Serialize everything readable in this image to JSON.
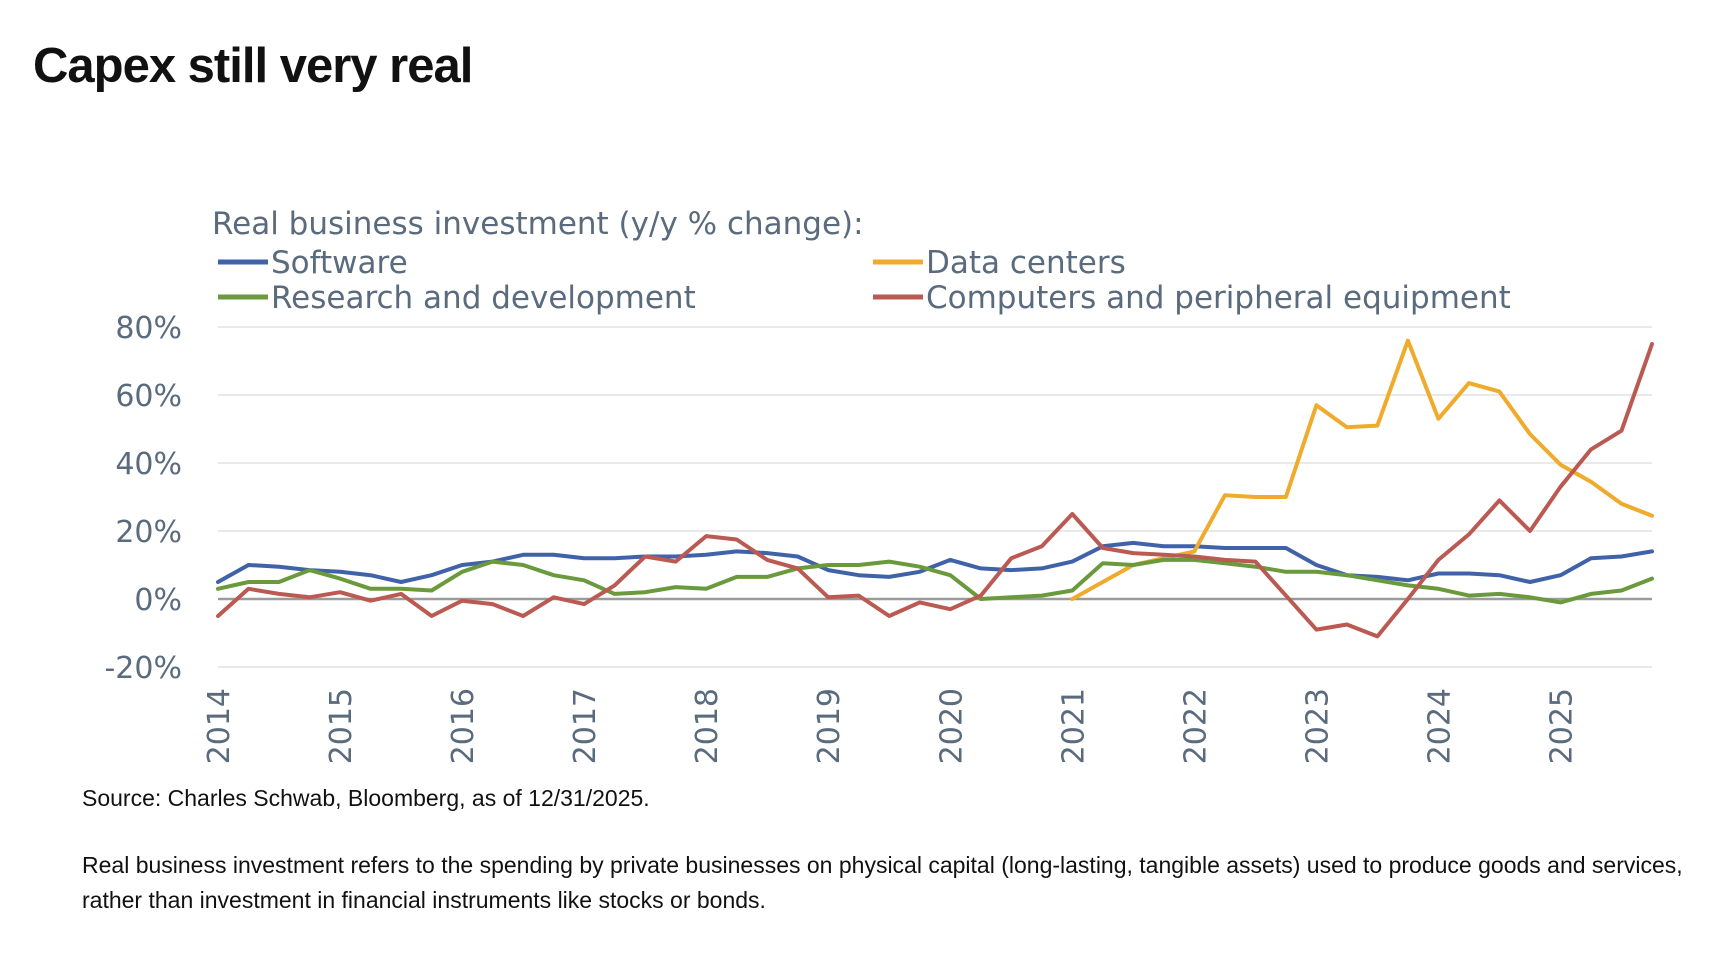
{
  "title": "Capex still very real",
  "source": "Source: Charles Schwab, Bloomberg, as of 12/31/2025.",
  "footnote": "Real business investment refers to the spending by private businesses on physical capital (long-lasting, tangible assets) used to produce goods and services, rather than investment in financial instruments like stocks or bonds.",
  "chart_data": {
    "type": "line",
    "title": "Real business investment (y/y % change):",
    "xlabel": "",
    "ylabel": "",
    "xlim": [
      2014.0,
      2025.75
    ],
    "ylim": [
      -20,
      80
    ],
    "y_ticks": [
      -20,
      0,
      20,
      40,
      60,
      80
    ],
    "y_tick_labels": [
      "-20%",
      "0%",
      "20%",
      "40%",
      "60%",
      "80%"
    ],
    "x_tick_labels": [
      "2014",
      "2015",
      "2016",
      "2017",
      "2018",
      "2019",
      "2020",
      "2021",
      "2022",
      "2023",
      "2024",
      "2025"
    ],
    "grid": true,
    "legend_position": "top",
    "x": [
      2014.0,
      2014.25,
      2014.5,
      2014.75,
      2015.0,
      2015.25,
      2015.5,
      2015.75,
      2016.0,
      2016.25,
      2016.5,
      2016.75,
      2017.0,
      2017.25,
      2017.5,
      2017.75,
      2018.0,
      2018.25,
      2018.5,
      2018.75,
      2019.0,
      2019.25,
      2019.5,
      2019.75,
      2020.0,
      2020.25,
      2020.5,
      2020.75,
      2021.0,
      2021.25,
      2021.5,
      2021.75,
      2022.0,
      2022.25,
      2022.5,
      2022.75,
      2023.0,
      2023.25,
      2023.5,
      2023.75,
      2024.0,
      2024.25,
      2024.5,
      2024.75,
      2025.0,
      2025.25,
      2025.5,
      2025.75
    ],
    "series": [
      {
        "name": "Software",
        "color": "#3f62a8",
        "values": [
          5,
          10,
          9.5,
          8.5,
          8,
          7,
          5,
          7,
          10,
          11,
          13,
          13,
          12,
          12,
          12.5,
          12.5,
          13,
          14,
          13.5,
          12.5,
          8.5,
          7,
          6.5,
          8,
          11.5,
          9,
          8.5,
          9,
          11,
          15.5,
          16.5,
          15.5,
          15.5,
          15,
          15,
          15,
          10,
          7,
          6.5,
          5.5,
          7.5,
          7.5,
          7,
          5,
          7,
          12,
          12.5,
          14
        ]
      },
      {
        "name": "Data centers",
        "color": "#f0aa2c",
        "values": [
          null,
          null,
          null,
          null,
          null,
          null,
          null,
          null,
          null,
          null,
          null,
          null,
          null,
          null,
          null,
          null,
          null,
          null,
          null,
          null,
          null,
          null,
          null,
          null,
          null,
          null,
          null,
          null,
          0,
          5,
          10,
          12,
          14,
          30.5,
          30,
          30,
          57,
          50.5,
          51,
          76,
          53,
          63.5,
          61,
          48.5,
          39.5,
          34.5,
          28,
          24.5
        ]
      },
      {
        "name": "Research and development",
        "color": "#6a9a3c",
        "values": [
          3,
          5,
          5,
          8.5,
          6,
          3,
          3,
          2.5,
          8,
          11,
          10,
          7,
          5.5,
          1.5,
          2,
          3.5,
          3,
          6.5,
          6.5,
          9,
          10,
          10,
          11,
          9.5,
          7,
          0,
          0.5,
          1,
          2.5,
          10.5,
          10,
          11.5,
          11.5,
          10.5,
          9.5,
          8,
          8,
          7,
          5.5,
          4,
          3,
          1,
          1.5,
          0.5,
          -1,
          1.5,
          2.5,
          6
        ]
      },
      {
        "name": "Computers and peripheral equipment",
        "color": "#bb5a52",
        "values": [
          -5,
          3,
          1.5,
          0.5,
          2,
          -0.5,
          1.5,
          -5,
          -0.5,
          -1.5,
          -5,
          0.5,
          -1.5,
          4,
          12.5,
          11,
          18.5,
          17.5,
          11.5,
          9,
          0.5,
          1,
          -5,
          -1,
          -3,
          1,
          12,
          15.5,
          25,
          15,
          13.5,
          13,
          12.5,
          11.5,
          11,
          1,
          -9,
          -7.5,
          -11,
          0,
          11.5,
          19,
          29,
          20,
          33,
          44,
          49.5,
          75
        ]
      }
    ]
  }
}
